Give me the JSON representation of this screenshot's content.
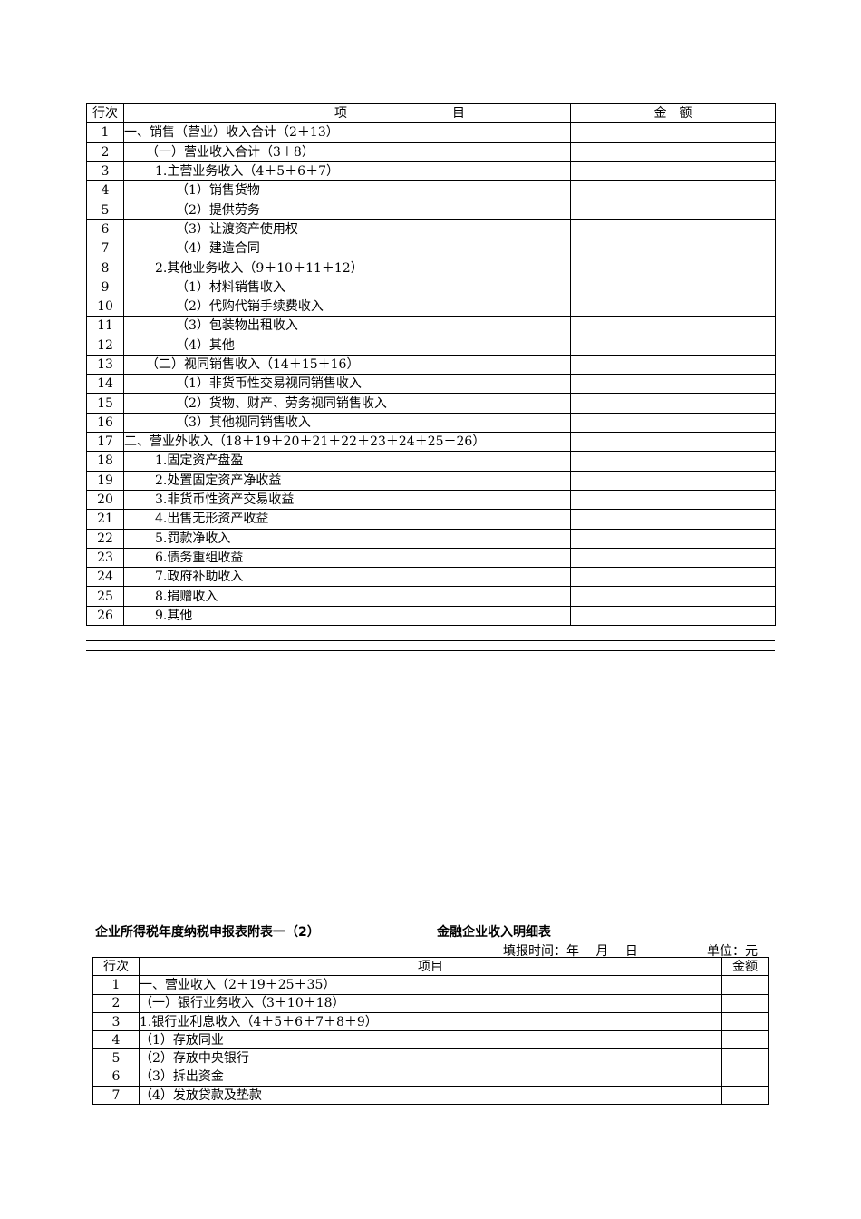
{
  "table1": {
    "headers": {
      "row": "行次",
      "item_left": "项",
      "item_right": "目",
      "amount": "金　额"
    },
    "rows": [
      {
        "no": "1",
        "label": "一、销售（营业）收入合计（2＋13）",
        "level": 0
      },
      {
        "no": "2",
        "label": "（一）营业收入合计（3＋8）",
        "level": 1
      },
      {
        "no": "3",
        "label": "1.主营业务收入（4＋5＋6＋7）",
        "level": 2
      },
      {
        "no": "4",
        "label": "（1）销售货物",
        "level": 3
      },
      {
        "no": "5",
        "label": "（2）提供劳务",
        "level": 3
      },
      {
        "no": "6",
        "label": "（3）让渡资产使用权",
        "level": 3
      },
      {
        "no": "7",
        "label": "（4）建造合同",
        "level": 3
      },
      {
        "no": "8",
        "label": "2.其他业务收入（9＋10＋11＋12）",
        "level": 2
      },
      {
        "no": "9",
        "label": "（1）材料销售收入",
        "level": 3
      },
      {
        "no": "10",
        "label": "（2）代购代销手续费收入",
        "level": 3
      },
      {
        "no": "11",
        "label": "（3）包装物出租收入",
        "level": 3
      },
      {
        "no": "12",
        "label": "（4）其他",
        "level": 3
      },
      {
        "no": "13",
        "label": "（二）视同销售收入（14＋15＋16）",
        "level": 1
      },
      {
        "no": "14",
        "label": "（1）非货币性交易视同销售收入",
        "level": 3
      },
      {
        "no": "15",
        "label": "（2）货物、财产、劳务视同销售收入",
        "level": 3
      },
      {
        "no": "16",
        "label": "（3）其他视同销售收入",
        "level": 3
      },
      {
        "no": "17",
        "label": "二、营业外收入（18＋19＋20＋21＋22＋23＋24＋25＋26）",
        "level": 0
      },
      {
        "no": "18",
        "label": "1.固定资产盘盈",
        "level": 2
      },
      {
        "no": "19",
        "label": "2.处置固定资产净收益",
        "level": 2
      },
      {
        "no": "20",
        "label": "3.非货币性资产交易收益",
        "level": 2
      },
      {
        "no": "21",
        "label": "4.出售无形资产收益",
        "level": 2
      },
      {
        "no": "22",
        "label": "5.罚款净收入",
        "level": 2
      },
      {
        "no": "23",
        "label": "6.债务重组收益",
        "level": 2
      },
      {
        "no": "24",
        "label": "7.政府补助收入",
        "level": 2
      },
      {
        "no": "25",
        "label": "8.捐赠收入",
        "level": 2
      },
      {
        "no": "26",
        "label": "9.其他",
        "level": 2
      }
    ]
  },
  "form2": {
    "title_left": "企业所得税年度纳税申报表附表一（2）",
    "title_right": "金融企业收入明细表",
    "fill_time": "填报时间：年　 月　 日",
    "unit": "单位：元",
    "headers": {
      "row": "行次",
      "item": "项目",
      "amount": "金额"
    },
    "rows": [
      {
        "no": "1",
        "label": "一、营业收入（2＋19＋25＋35）"
      },
      {
        "no": "2",
        "label": "（一）银行业务收入（3＋10＋18）"
      },
      {
        "no": "3",
        "label": "1.银行业利息收入（4＋5＋6＋7＋8＋9）"
      },
      {
        "no": "4",
        "label": "（1）存放同业"
      },
      {
        "no": "5",
        "label": "（2）存放中央银行"
      },
      {
        "no": "6",
        "label": "（3）拆出资金"
      },
      {
        "no": "7",
        "label": "（4）发放贷款及垫款"
      }
    ]
  }
}
